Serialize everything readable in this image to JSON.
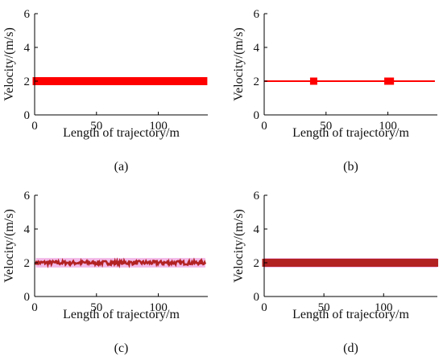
{
  "figure": {
    "panels": [
      "(a)",
      "(b)",
      "(c)",
      "(d)"
    ]
  },
  "colors": {
    "axis": "#000000",
    "red_series": "#ff0000",
    "dark_red_series": "#b22222",
    "band": "#f2b8e8"
  },
  "chart_data": [
    {
      "panel": "(a)",
      "type": "line",
      "xlabel": "Length of trajectory/m",
      "ylabel": "Velocity/(m/s)",
      "xlim": [
        0,
        140
      ],
      "ylim": [
        0,
        6
      ],
      "xticks": [
        0,
        50,
        100
      ],
      "yticks": [
        0,
        2,
        4,
        6
      ],
      "grid": false,
      "series": [
        {
          "style": "thick-marker-line",
          "color": "#ff0000",
          "x": [
            1,
            138
          ],
          "y": [
            2.0,
            2.0
          ]
        }
      ]
    },
    {
      "panel": "(b)",
      "type": "line",
      "xlabel": "Length of trajectory/m",
      "ylabel": "Velocity/(m/s)",
      "xlim": [
        0,
        140
      ],
      "ylim": [
        0,
        6
      ],
      "xticks": [
        0,
        50,
        100
      ],
      "yticks": [
        0,
        2,
        4,
        6
      ],
      "grid": false,
      "series": [
        {
          "style": "line",
          "color": "#ff0000",
          "x": [
            0,
            138
          ],
          "y": [
            2.0,
            2.0
          ]
        },
        {
          "style": "markers",
          "color": "#ff0000",
          "x": [
            40,
            100,
            102
          ],
          "y": [
            2.0,
            2.0,
            2.0
          ]
        }
      ]
    },
    {
      "panel": "(c)",
      "type": "line",
      "xlabel": "Length of trajectory/m",
      "ylabel": "Velocity/(m/s)",
      "xlim": [
        0,
        140
      ],
      "ylim": [
        0,
        6
      ],
      "xticks": [
        0,
        50,
        100
      ],
      "yticks": [
        0,
        2,
        4,
        6
      ],
      "grid": false,
      "band": {
        "color": "#f2b8e8",
        "x": [
          1,
          138
        ],
        "y": [
          1.72,
          2.28
        ]
      },
      "series": [
        {
          "style": "noisy-line",
          "color": "#b22222",
          "x": [
            1,
            138
          ],
          "y": [
            2.0,
            2.0
          ],
          "amplitude": 0.12
        }
      ]
    },
    {
      "panel": "(d)",
      "type": "line",
      "xlabel": "Length of trajectory/m",
      "ylabel": "Velocity/(m/s)",
      "xlim": [
        0,
        145
      ],
      "ylim": [
        0,
        6
      ],
      "xticks": [
        0,
        50,
        100
      ],
      "yticks": [
        0,
        2,
        4,
        6
      ],
      "grid": false,
      "band": {
        "color": "#f2b8e8",
        "x": [
          0,
          145
        ],
        "y": [
          1.72,
          2.28
        ]
      },
      "series": [
        {
          "style": "thick-marker-line",
          "color": "#b22222",
          "x": [
            1,
            143
          ],
          "y": [
            2.0,
            2.0
          ]
        }
      ]
    }
  ]
}
